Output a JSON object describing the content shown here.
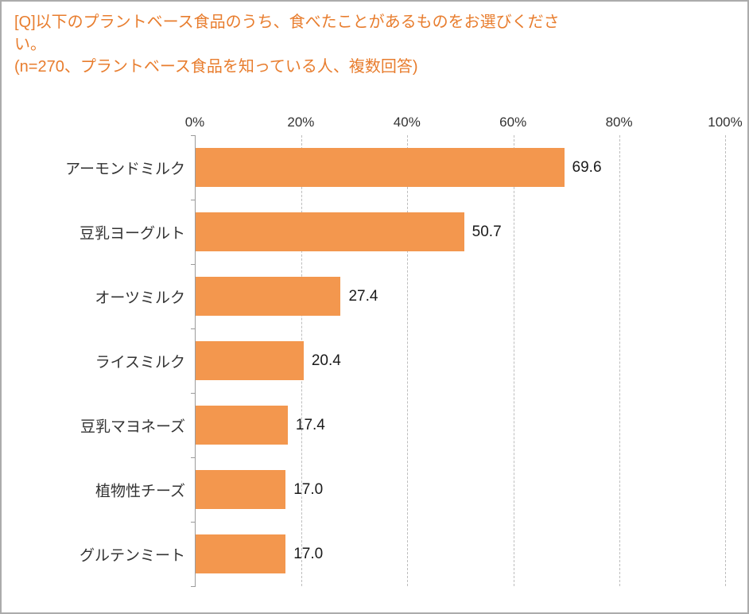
{
  "title": {
    "question": "[Q]以下のプラントベース食品のうち、食べたことがあるものをお選びください。",
    "note": "(n=270、プラントベース食品を知っている人、複数回答)"
  },
  "colors": {
    "title_text": "#e87d2e",
    "bar": "#f3974e",
    "grid": "#bdbdbd",
    "axis": "#9b9b9b",
    "frame_border": "#ababab",
    "category_text": "#333333",
    "value_text": "#1a1a1a"
  },
  "chart_data": {
    "type": "bar",
    "orientation": "horizontal",
    "title": "[Q]以下のプラントベース食品のうち、食べたことがあるものをお選びください。",
    "subtitle": "(n=270、プラントベース食品を知っている人、複数回答)",
    "categories": [
      "アーモンドミルク",
      "豆乳ヨーグルト",
      "オーツミルク",
      "ライスミルク",
      "豆乳マヨネーズ",
      "植物性チーズ",
      "グルテンミート"
    ],
    "values": [
      69.6,
      50.7,
      27.4,
      20.4,
      17.4,
      17.0,
      17.0
    ],
    "value_labels": [
      "69.6",
      "50.7",
      "27.4",
      "20.4",
      "17.4",
      "17.0",
      "17.0"
    ],
    "xlabel": "",
    "ylabel": "",
    "xlim": [
      0,
      100
    ],
    "x_tick_values": [
      0,
      20,
      40,
      60,
      80,
      100
    ],
    "x_tick_labels": [
      "0%",
      "20%",
      "40%",
      "60%",
      "80%",
      "100%"
    ],
    "grid": "dashed-vertical",
    "legend": "none"
  }
}
